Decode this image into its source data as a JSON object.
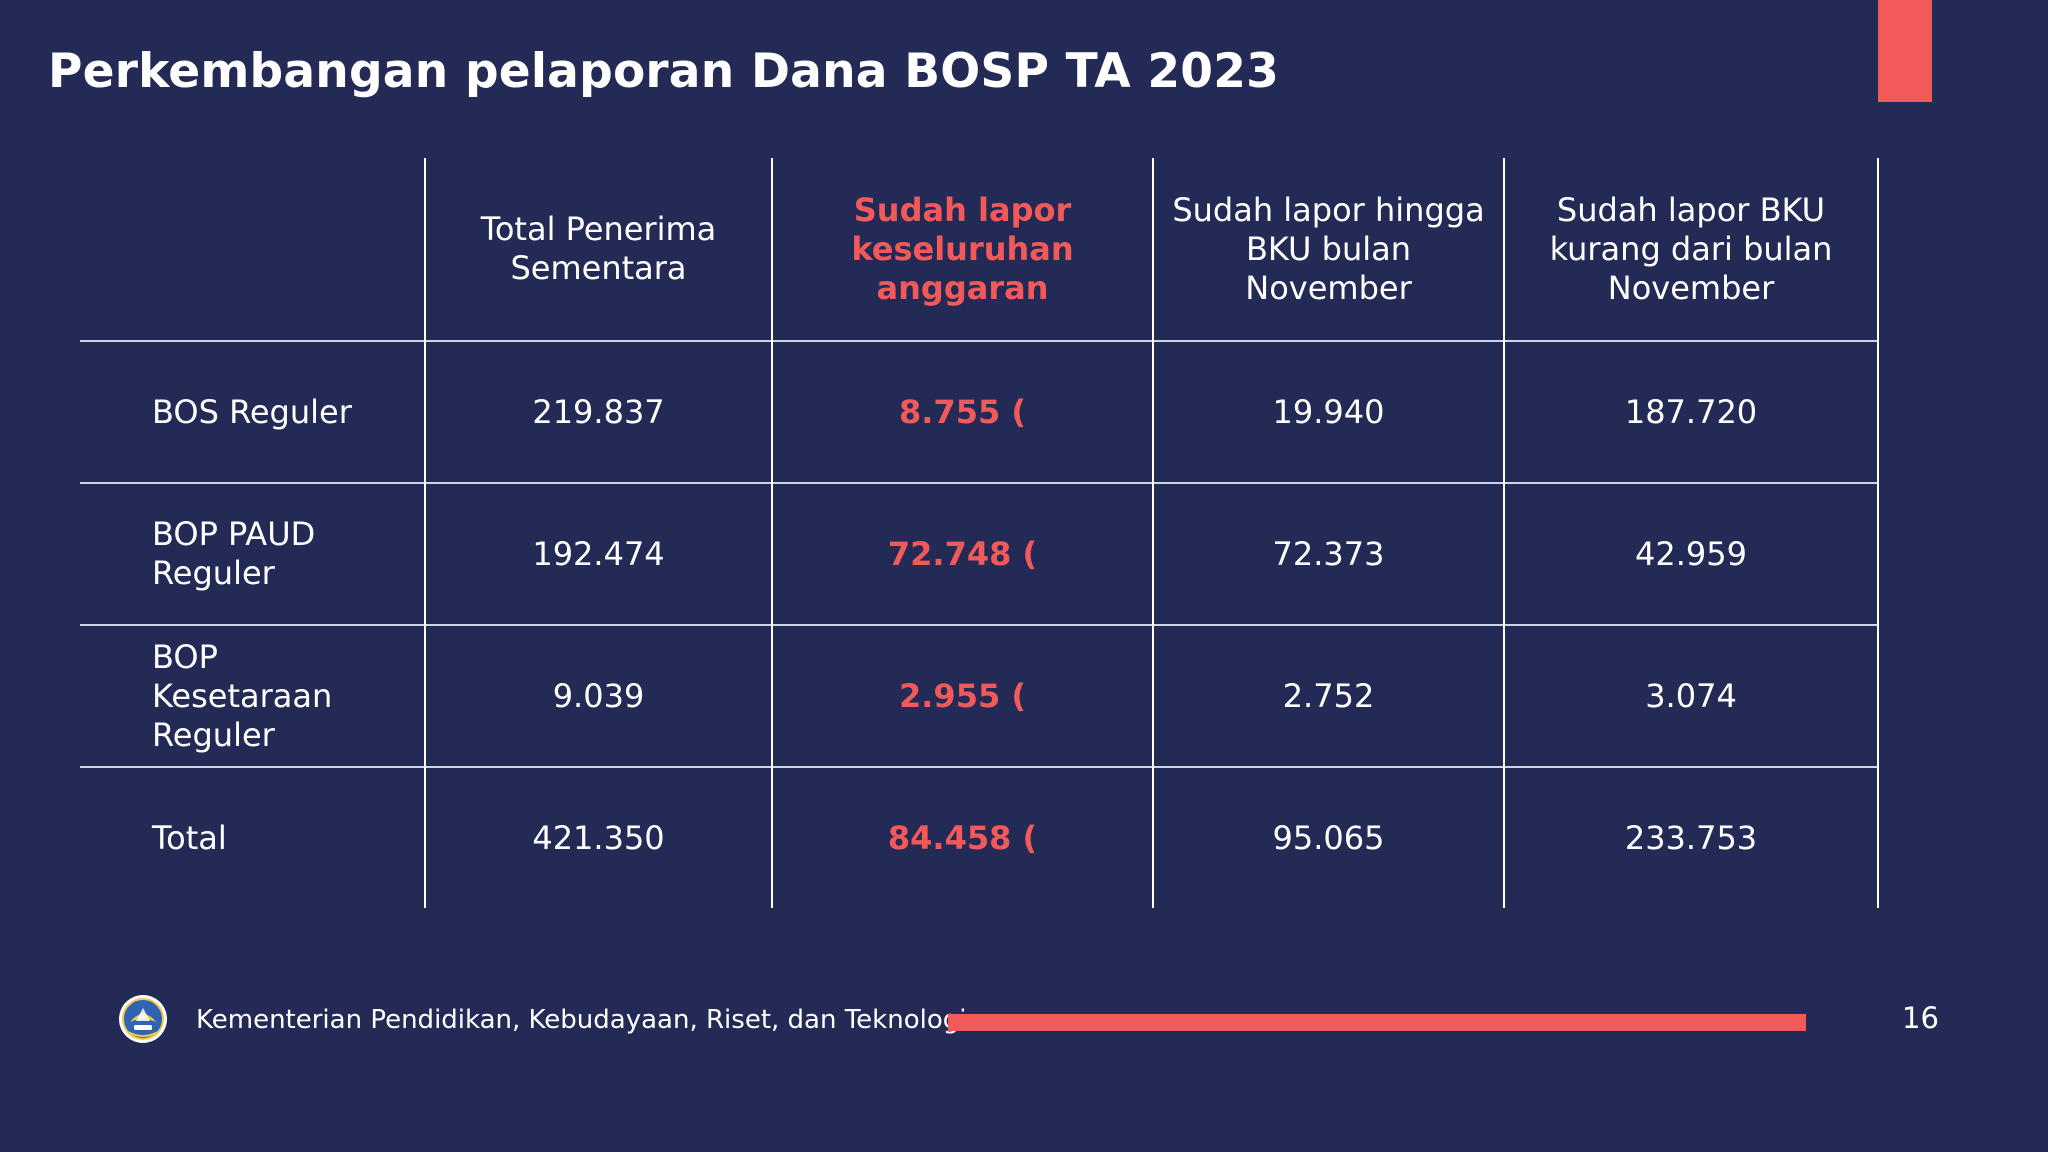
{
  "slide": {
    "title": "Perkembangan pelaporan Dana BOSP TA 2023",
    "page_number": "16",
    "accent_color": "#f25a5a",
    "background_color": "#232a56"
  },
  "table": {
    "headers": [
      "",
      "Total Penerima Sementara",
      "Sudah lapor keseluruhan anggaran",
      "Sudah lapor hingga BKU bulan November",
      "Sudah lapor BKU kurang dari bulan November"
    ],
    "rows": [
      {
        "label": "BOS Reguler",
        "total_penerima": "219.837",
        "sudah_lapor_keseluruhan": "8.755 (",
        "hingga_november": "19.940",
        "kurang_dari_november": "187.720"
      },
      {
        "label": "BOP PAUD Reguler",
        "total_penerima": "192.474",
        "sudah_lapor_keseluruhan": "72.748 (",
        "hingga_november": "72.373",
        "kurang_dari_november": "42.959"
      },
      {
        "label": "BOP Kesetaraan Reguler",
        "total_penerima": "9.039",
        "sudah_lapor_keseluruhan": "2.955 (",
        "hingga_november": "2.752",
        "kurang_dari_november": "3.074"
      },
      {
        "label": "Total",
        "total_penerima": "421.350",
        "sudah_lapor_keseluruhan": "84.458 (",
        "hingga_november": "95.065",
        "kurang_dari_november": "233.753"
      }
    ]
  },
  "footer": {
    "organization": "Kementerian Pendidikan, Kebudayaan, Riset, dan Teknologi",
    "logo_icon": "tut-wuri-handayani-emblem-icon"
  }
}
